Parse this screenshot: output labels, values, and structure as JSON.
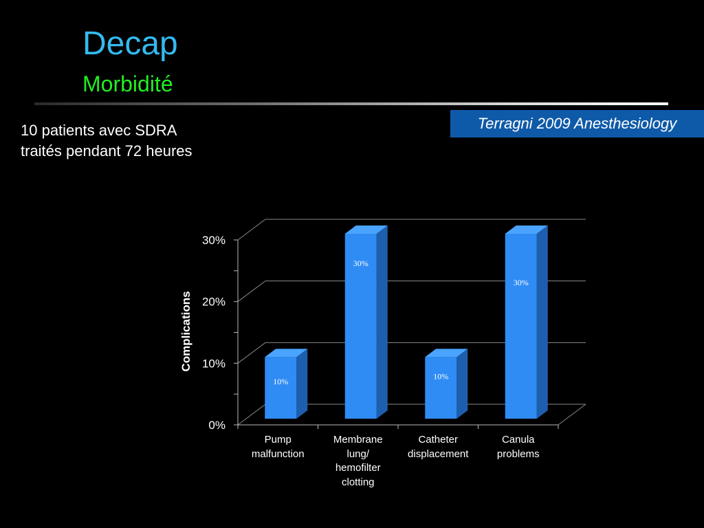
{
  "slide": {
    "title": "Decap",
    "subtitle": "Morbidité",
    "citation": "Terragni 2009 Anesthesiology",
    "intro_lines": [
      "10 patients avec SDRA",
      "traités pendant 72 heures"
    ]
  },
  "colors": {
    "title": "#33bbf0",
    "subtitle": "#22ee22",
    "citation_bg": "#0f5aa8",
    "bar_front": "#2f8cf4",
    "bar_side": "#1d5fae",
    "bar_top": "#4aa4ff"
  },
  "chart_data": {
    "type": "bar",
    "categories": [
      [
        "Pump",
        "malfunction"
      ],
      [
        "Membrane",
        "lung/",
        "hemofilter",
        "clotting"
      ],
      [
        "Catheter",
        "displacement"
      ],
      [
        "Canula",
        "problems"
      ]
    ],
    "values": [
      10,
      30,
      10,
      30
    ],
    "value_labels": [
      "10%",
      "30%",
      "10%",
      "30%"
    ],
    "ylabel": "Complications",
    "xlabel": "",
    "ylim": [
      0,
      30
    ],
    "yticks": [
      "0%",
      "10%",
      "20%",
      "30%"
    ],
    "grid": true,
    "style": "3d-column"
  }
}
